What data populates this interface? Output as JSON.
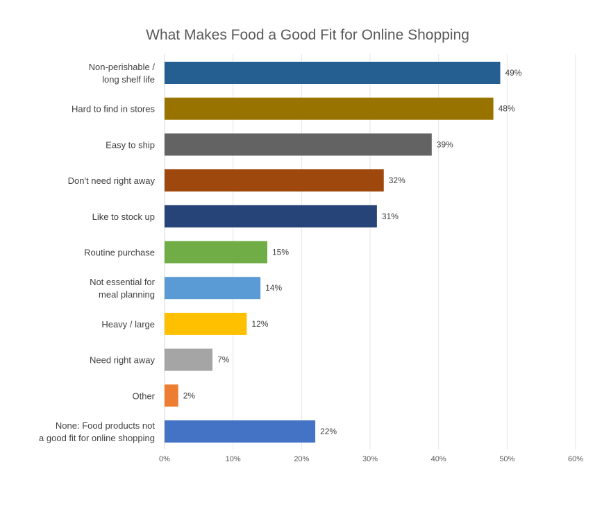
{
  "chart_data": {
    "type": "bar",
    "orientation": "horizontal",
    "title": "What Makes Food a Good Fit for Online Shopping",
    "xlabel": "",
    "ylabel": "",
    "xlim": [
      0,
      60
    ],
    "grid": true,
    "legend": "none",
    "ticks": [
      "0%",
      "10%",
      "20%",
      "30%",
      "40%",
      "50%",
      "60%"
    ],
    "tick_values": [
      0,
      10,
      20,
      30,
      40,
      50,
      60
    ],
    "categories": [
      [
        "Non-perishable /",
        "long shelf life"
      ],
      [
        "Hard to find in stores"
      ],
      [
        "Easy to ship"
      ],
      [
        "Don't need right away"
      ],
      [
        "Like to stock up"
      ],
      [
        "Routine purchase"
      ],
      [
        "Not essential for",
        "meal planning"
      ],
      [
        "Heavy / large"
      ],
      [
        "Need right away"
      ],
      [
        "Other"
      ],
      [
        "None: Food products not",
        "a good fit for online shopping"
      ]
    ],
    "values": [
      49,
      48,
      39,
      32,
      31,
      15,
      14,
      12,
      7,
      2,
      22
    ],
    "value_labels": [
      "49%",
      "48%",
      "39%",
      "32%",
      "31%",
      "15%",
      "14%",
      "12%",
      "7%",
      "2%",
      "22%"
    ],
    "colors": [
      "#255e91",
      "#997300",
      "#636363",
      "#9e480e",
      "#264478",
      "#70ad47",
      "#5b9bd5",
      "#ffc000",
      "#a5a5a5",
      "#ed7d31",
      "#4472c4"
    ]
  }
}
